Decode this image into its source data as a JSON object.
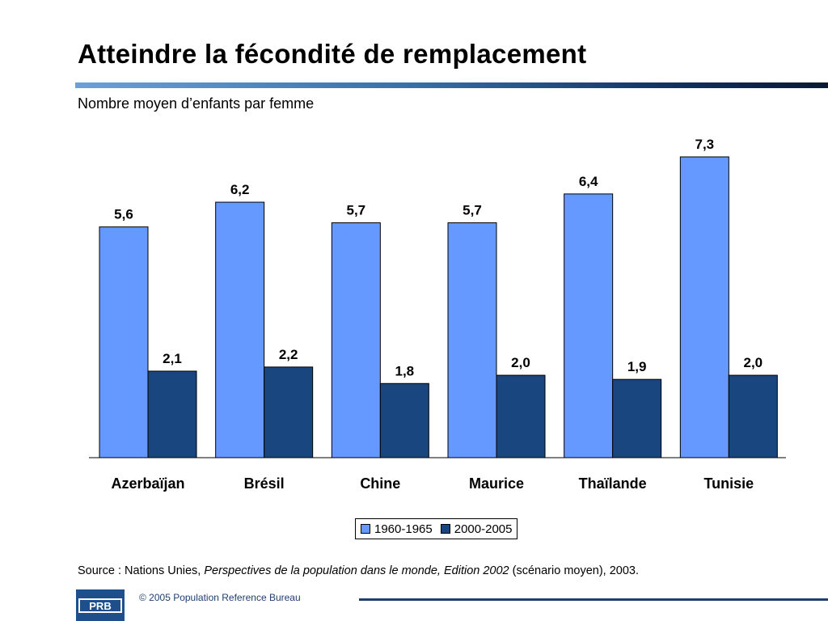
{
  "slide": {
    "title": "Atteindre la fécondité de remplacement",
    "subtitle": "Nombre moyen d’enfants par femme"
  },
  "source": {
    "prefix": "Source : Nations Unies, ",
    "italic": "Perspectives de la population dans le monde, Edition 2002",
    "suffix": " (scénario moyen), 2003."
  },
  "footer": {
    "copyright": "© 2005 Population Reference Bureau",
    "logo_text": "PRB"
  },
  "colors": {
    "series_1": "#6699ff",
    "series_2": "#1a4680",
    "footer_blue": "#1f4f8a"
  },
  "chart_data": {
    "type": "bar",
    "categories": [
      "Azerbaïjan",
      "Brésil",
      "Chine",
      "Maurice",
      "Thaïlande",
      "Tunisie"
    ],
    "series": [
      {
        "name": "1960-1965",
        "values": [
          5.6,
          6.2,
          5.7,
          5.7,
          6.4,
          7.3
        ],
        "labels": [
          "5,6",
          "6,2",
          "5,7",
          "5,7",
          "6,4",
          "7,3"
        ]
      },
      {
        "name": "2000-2005",
        "values": [
          2.1,
          2.2,
          1.8,
          2.0,
          1.9,
          2.0
        ],
        "labels": [
          "2,1",
          "2,2",
          "1,8",
          "2,0",
          "1,9",
          "2,0"
        ]
      }
    ],
    "title": "",
    "ylabel": "",
    "xlabel": "",
    "ylim": [
      0,
      7.3
    ],
    "legend_position": "bottom-center",
    "grid": false
  }
}
